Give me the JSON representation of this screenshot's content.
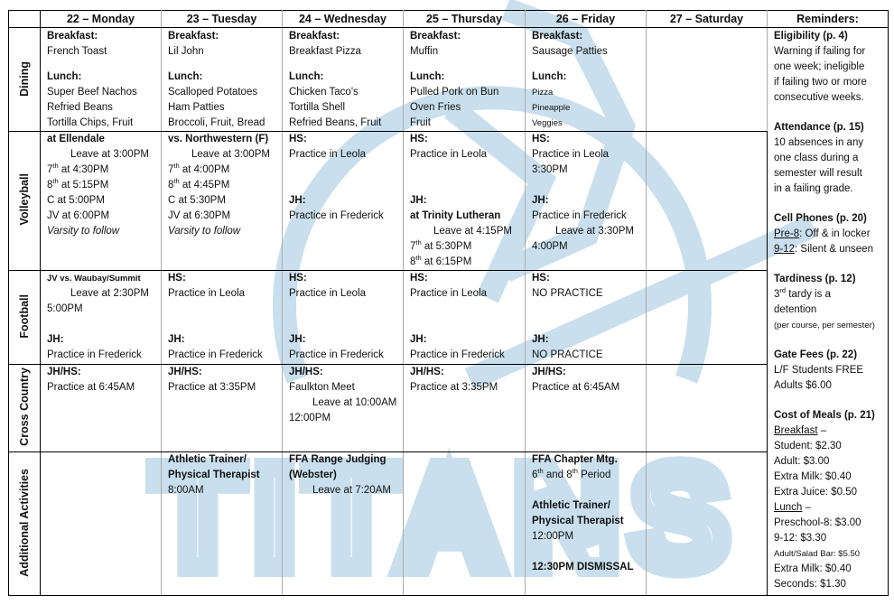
{
  "watermark": "TITANS",
  "colors": {
    "watermark": "#c9dfed",
    "border": "#000000"
  },
  "header": {
    "days": [
      "22 – Monday",
      "23 – Tuesday",
      "24 – Wednesday",
      "25 – Thursday",
      "26 – Friday",
      "27 – Saturday"
    ],
    "reminders_title": "Reminders:"
  },
  "rows": [
    {
      "label": "Dining",
      "key": "dining",
      "cells": [
        [
          {
            "t": "Breakfast:",
            "b": true
          },
          "French Toast",
          "",
          {
            "t": "Lunch:",
            "b": true
          },
          "Super Beef Nachos",
          "Refried Beans",
          "Tortilla Chips, Fruit"
        ],
        [
          {
            "t": "Breakfast:",
            "b": true
          },
          "Lil John",
          "",
          {
            "t": "Lunch:",
            "b": true
          },
          "Scalloped Potatoes",
          "Ham Patties",
          "Broccoli, Fruit, Bread"
        ],
        [
          {
            "t": "Breakfast:",
            "b": true
          },
          "Breakfast Pizza",
          "",
          {
            "t": "Lunch:",
            "b": true
          },
          "Chicken Taco's",
          "Tortilla Shell",
          "Refried Beans, Fruit"
        ],
        [
          {
            "t": "Breakfast:",
            "b": true
          },
          "Muffin",
          "",
          {
            "t": "Lunch:",
            "b": true
          },
          "Pulled Pork on Bun",
          "Oven Fries",
          "Fruit"
        ],
        [
          {
            "t": "Breakfast:",
            "b": true
          },
          "Sausage Patties",
          "",
          {
            "t": "Lunch:",
            "b": true
          },
          {
            "t": "Pizza",
            "sm": true
          },
          {
            "t": "Pineapple",
            "sm": true
          },
          {
            "t": "Veggies",
            "sm": true
          }
        ],
        []
      ]
    },
    {
      "label": "Volleyball",
      "key": "volleyball",
      "cells": [
        [
          {
            "t": "at Ellendale",
            "b": true
          },
          {
            "t": "Leave at 3:00PM",
            "ind": true
          },
          {
            "segs": [
              {
                "t": "7"
              },
              {
                "t": "th",
                "sup": true
              },
              {
                "t": " at 4:30PM"
              }
            ]
          },
          {
            "segs": [
              {
                "t": "8"
              },
              {
                "t": "th",
                "sup": true
              },
              {
                "t": " at 5:15PM"
              }
            ]
          },
          "C at 5:00PM",
          "JV at 6:00PM",
          {
            "t": "Varsity to follow",
            "i": true
          }
        ],
        [
          {
            "t": "vs. Northwestern (F)",
            "b": true
          },
          {
            "t": "Leave at 3:00PM",
            "ind": true
          },
          {
            "segs": [
              {
                "t": "7"
              },
              {
                "t": "th",
                "sup": true
              },
              {
                "t": " at 4:00PM"
              }
            ]
          },
          {
            "segs": [
              {
                "t": "8"
              },
              {
                "t": "th",
                "sup": true
              },
              {
                "t": " at 4:45PM"
              }
            ]
          },
          "C at 5:30PM",
          "JV at 6:30PM",
          {
            "t": "Varsity to follow",
            "i": true
          }
        ],
        [
          {
            "t": "HS:",
            "b": true
          },
          "Practice in Leola",
          "",
          "",
          {
            "t": "JH:",
            "b": true
          },
          "Practice in Frederick"
        ],
        [
          {
            "t": "HS:",
            "b": true
          },
          "Practice in Leola",
          "",
          "",
          {
            "t": "JH:",
            "b": true
          },
          {
            "t": "at Trinity Lutheran",
            "b": true
          },
          {
            "t": "Leave at 4:15PM",
            "ind": true
          },
          {
            "segs": [
              {
                "t": "7"
              },
              {
                "t": "th",
                "sup": true
              },
              {
                "t": " at 5:30PM"
              }
            ]
          },
          {
            "segs": [
              {
                "t": "8"
              },
              {
                "t": "th",
                "sup": true
              },
              {
                "t": " at 6:15PM"
              }
            ]
          }
        ],
        [
          {
            "t": "HS:",
            "b": true
          },
          "Practice in Leola",
          "3:30PM",
          "",
          {
            "t": "JH:",
            "b": true
          },
          "Practice in Frederick",
          {
            "t": "Leave at 3:30PM",
            "ind": true
          },
          "4:00PM"
        ],
        []
      ]
    },
    {
      "label": "Football",
      "key": "football",
      "cells": [
        [
          {
            "t": "JV vs.  Waubay/Summit",
            "b": true,
            "sm": true
          },
          {
            "t": "Leave at 2:30PM",
            "ind": true
          },
          "5:00PM",
          "",
          {
            "t": "JH:",
            "b": true
          },
          "Practice in Frederick"
        ],
        [
          {
            "t": "HS:",
            "b": true
          },
          "Practice in Leola",
          "",
          "",
          {
            "t": "JH:",
            "b": true
          },
          "Practice in Frederick"
        ],
        [
          {
            "t": "HS:",
            "b": true
          },
          "Practice in Leola",
          "",
          "",
          {
            "t": "JH:",
            "b": true
          },
          "Practice in Frederick"
        ],
        [
          {
            "t": "HS:",
            "b": true
          },
          "Practice in Leola",
          "",
          "",
          {
            "t": "JH:",
            "b": true
          },
          "Practice in Frederick"
        ],
        [
          {
            "t": "HS:",
            "b": true
          },
          "NO PRACTICE",
          "",
          "",
          {
            "t": "JH:",
            "b": true
          },
          "NO PRACTICE"
        ],
        []
      ]
    },
    {
      "label": "Cross Country",
      "key": "xc",
      "cells": [
        [
          {
            "t": "JH/HS:",
            "b": true
          },
          "Practice at 6:45AM"
        ],
        [
          {
            "t": "JH/HS:",
            "b": true
          },
          "Practice at 3:35PM"
        ],
        [
          {
            "t": "JH/HS:",
            "b": true
          },
          "Faulkton Meet",
          {
            "t": "Leave at 10:00AM",
            "ind": true
          },
          "12:00PM"
        ],
        [
          {
            "t": "JH/HS:",
            "b": true
          },
          "Practice at 3:35PM"
        ],
        [
          {
            "t": "JH/HS:",
            "b": true
          },
          "Practice at 6:45AM"
        ],
        []
      ]
    },
    {
      "label": "Additional Activities",
      "key": "additional",
      "cells": [
        [],
        [
          {
            "t": "Athletic Trainer/",
            "b": true
          },
          {
            "t": "Physical Therapist",
            "b": true
          },
          "8:00AM"
        ],
        [
          {
            "t": "FFA Range Judging",
            "b": true
          },
          {
            "t": "(Webster)",
            "b": true
          },
          {
            "t": "Leave at 7:20AM",
            "ind": true
          }
        ],
        [],
        [
          {
            "t": "FFA Chapter Mtg.",
            "b": true
          },
          {
            "segs": [
              {
                "t": "6"
              },
              {
                "t": "th",
                "sup": true
              },
              {
                "t": " and 8"
              },
              {
                "t": "th",
                "sup": true
              },
              {
                "t": " Period"
              }
            ]
          },
          "",
          {
            "t": "Athletic Trainer/",
            "b": true
          },
          {
            "t": "Physical Therapist",
            "b": true
          },
          "12:00PM",
          "",
          {
            "t": "12:30PM DISMISSAL",
            "b": true
          }
        ],
        []
      ]
    }
  ],
  "reminders": [
    {
      "t": "Eligibility (p. 4)",
      "b": true
    },
    "Warning if failing for",
    "one week; ineligible",
    "if failing two or more",
    "consecutive weeks.",
    "",
    {
      "t": "Attendance (p. 15)",
      "b": true
    },
    "10 absences in any",
    "one class during a",
    "semester will result",
    "in a failing grade.",
    "",
    {
      "t": "Cell Phones (p. 20)",
      "b": true
    },
    {
      "segs": [
        {
          "t": "Pre-8",
          "u": true
        },
        {
          "t": ": Off & in locker"
        }
      ]
    },
    {
      "segs": [
        {
          "t": "9-12",
          "u": true
        },
        {
          "t": ": Silent & unseen"
        }
      ]
    },
    "",
    {
      "t": "Tardiness (p. 12)",
      "b": true
    },
    {
      "segs": [
        {
          "t": "3"
        },
        {
          "t": "rd",
          "sup": true
        },
        {
          "t": " tardy is a"
        }
      ]
    },
    "detention",
    {
      "t": "(per course, per semester)",
      "sm": true
    },
    "",
    {
      "t": "Gate Fees (p. 22)",
      "b": true
    },
    "L/F Students FREE",
    "Adults $6.00",
    "",
    {
      "t": "Cost of Meals (p. 21)",
      "b": true
    },
    {
      "segs": [
        {
          "t": "Breakfast",
          "u": true
        },
        {
          "t": " –"
        }
      ]
    },
    "Student: $2.30",
    "Adult: $3.00",
    "Extra Milk: $0.40",
    "Extra Juice: $0.50",
    {
      "segs": [
        {
          "t": "Lunch",
          "u": true
        },
        {
          "t": " –"
        }
      ]
    },
    "Preschool-8: $3.00",
    "9-12: $3.30",
    {
      "t": "Adult/Salad Bar: $5.50",
      "sm": true
    },
    "Extra Milk: $0.40",
    "Seconds: $1.30"
  ]
}
